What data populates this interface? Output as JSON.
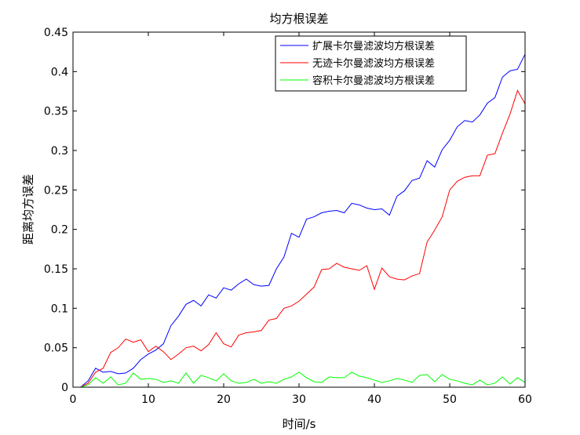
{
  "chart_data": {
    "type": "line",
    "title": "均方根误差",
    "xlabel": "时间/s",
    "ylabel": "距离均方误差",
    "xlim": [
      0,
      60
    ],
    "ylim": [
      0,
      0.45
    ],
    "xticks": [
      0,
      10,
      20,
      30,
      40,
      50,
      60
    ],
    "xtick_labels": [
      "0",
      "10",
      "20",
      "30",
      "40",
      "50",
      "60"
    ],
    "yticks": [
      0,
      0.05,
      0.1,
      0.15,
      0.2,
      0.25,
      0.3,
      0.35,
      0.4,
      0.45
    ],
    "ytick_labels": [
      "0",
      "0.05",
      "0.1",
      "0.15",
      "0.2",
      "0.25",
      "0.3",
      "0.35",
      "0.4",
      "0.45"
    ],
    "grid": false,
    "legend": "top-right",
    "x": [
      1,
      2,
      3,
      4,
      5,
      6,
      7,
      8,
      9,
      10,
      11,
      12,
      13,
      14,
      15,
      16,
      17,
      18,
      19,
      20,
      21,
      22,
      23,
      24,
      25,
      26,
      27,
      28,
      29,
      30,
      31,
      32,
      33,
      34,
      35,
      36,
      37,
      38,
      39,
      40,
      41,
      42,
      43,
      44,
      45,
      46,
      47,
      48,
      49,
      50,
      51,
      52,
      53,
      54,
      55,
      56,
      57,
      58,
      59,
      60
    ],
    "series": [
      {
        "name": "扩展卡尔曼滤波均方根误差",
        "color": "#0000ff",
        "values": [
          0.0,
          0.008,
          0.024,
          0.019,
          0.02,
          0.017,
          0.018,
          0.024,
          0.035,
          0.042,
          0.047,
          0.055,
          0.078,
          0.09,
          0.105,
          0.11,
          0.103,
          0.117,
          0.113,
          0.126,
          0.123,
          0.131,
          0.137,
          0.13,
          0.128,
          0.129,
          0.15,
          0.165,
          0.195,
          0.19,
          0.213,
          0.216,
          0.221,
          0.223,
          0.224,
          0.221,
          0.233,
          0.231,
          0.227,
          0.225,
          0.226,
          0.218,
          0.242,
          0.249,
          0.262,
          0.265,
          0.287,
          0.279,
          0.301,
          0.313,
          0.33,
          0.338,
          0.336,
          0.345,
          0.36,
          0.367,
          0.393,
          0.401,
          0.403,
          0.422
        ]
      },
      {
        "name": "无迹卡尔曼滤波均方根误差",
        "color": "#ff0000",
        "values": [
          0.0,
          0.005,
          0.019,
          0.024,
          0.044,
          0.05,
          0.061,
          0.057,
          0.06,
          0.045,
          0.052,
          0.045,
          0.035,
          0.042,
          0.05,
          0.052,
          0.046,
          0.054,
          0.069,
          0.055,
          0.051,
          0.066,
          0.069,
          0.07,
          0.072,
          0.085,
          0.087,
          0.1,
          0.103,
          0.109,
          0.118,
          0.127,
          0.149,
          0.15,
          0.157,
          0.152,
          0.15,
          0.148,
          0.154,
          0.124,
          0.151,
          0.14,
          0.137,
          0.136,
          0.141,
          0.144,
          0.184,
          0.199,
          0.216,
          0.25,
          0.261,
          0.266,
          0.268,
          0.268,
          0.294,
          0.296,
          0.322,
          0.346,
          0.376,
          0.359
        ]
      },
      {
        "name": "容积卡尔曼滤波均方根误差",
        "color": "#00ff00",
        "values": [
          0.0,
          0.003,
          0.012,
          0.005,
          0.013,
          0.003,
          0.005,
          0.018,
          0.01,
          0.011,
          0.01,
          0.006,
          0.008,
          0.005,
          0.018,
          0.005,
          0.015,
          0.012,
          0.008,
          0.017,
          0.008,
          0.005,
          0.006,
          0.01,
          0.005,
          0.007,
          0.005,
          0.01,
          0.013,
          0.019,
          0.012,
          0.007,
          0.006,
          0.013,
          0.012,
          0.012,
          0.019,
          0.014,
          0.012,
          0.009,
          0.006,
          0.008,
          0.011,
          0.009,
          0.006,
          0.015,
          0.016,
          0.007,
          0.016,
          0.01,
          0.008,
          0.005,
          0.003,
          0.009,
          0.003,
          0.005,
          0.013,
          0.004,
          0.012,
          0.006
        ]
      }
    ]
  }
}
